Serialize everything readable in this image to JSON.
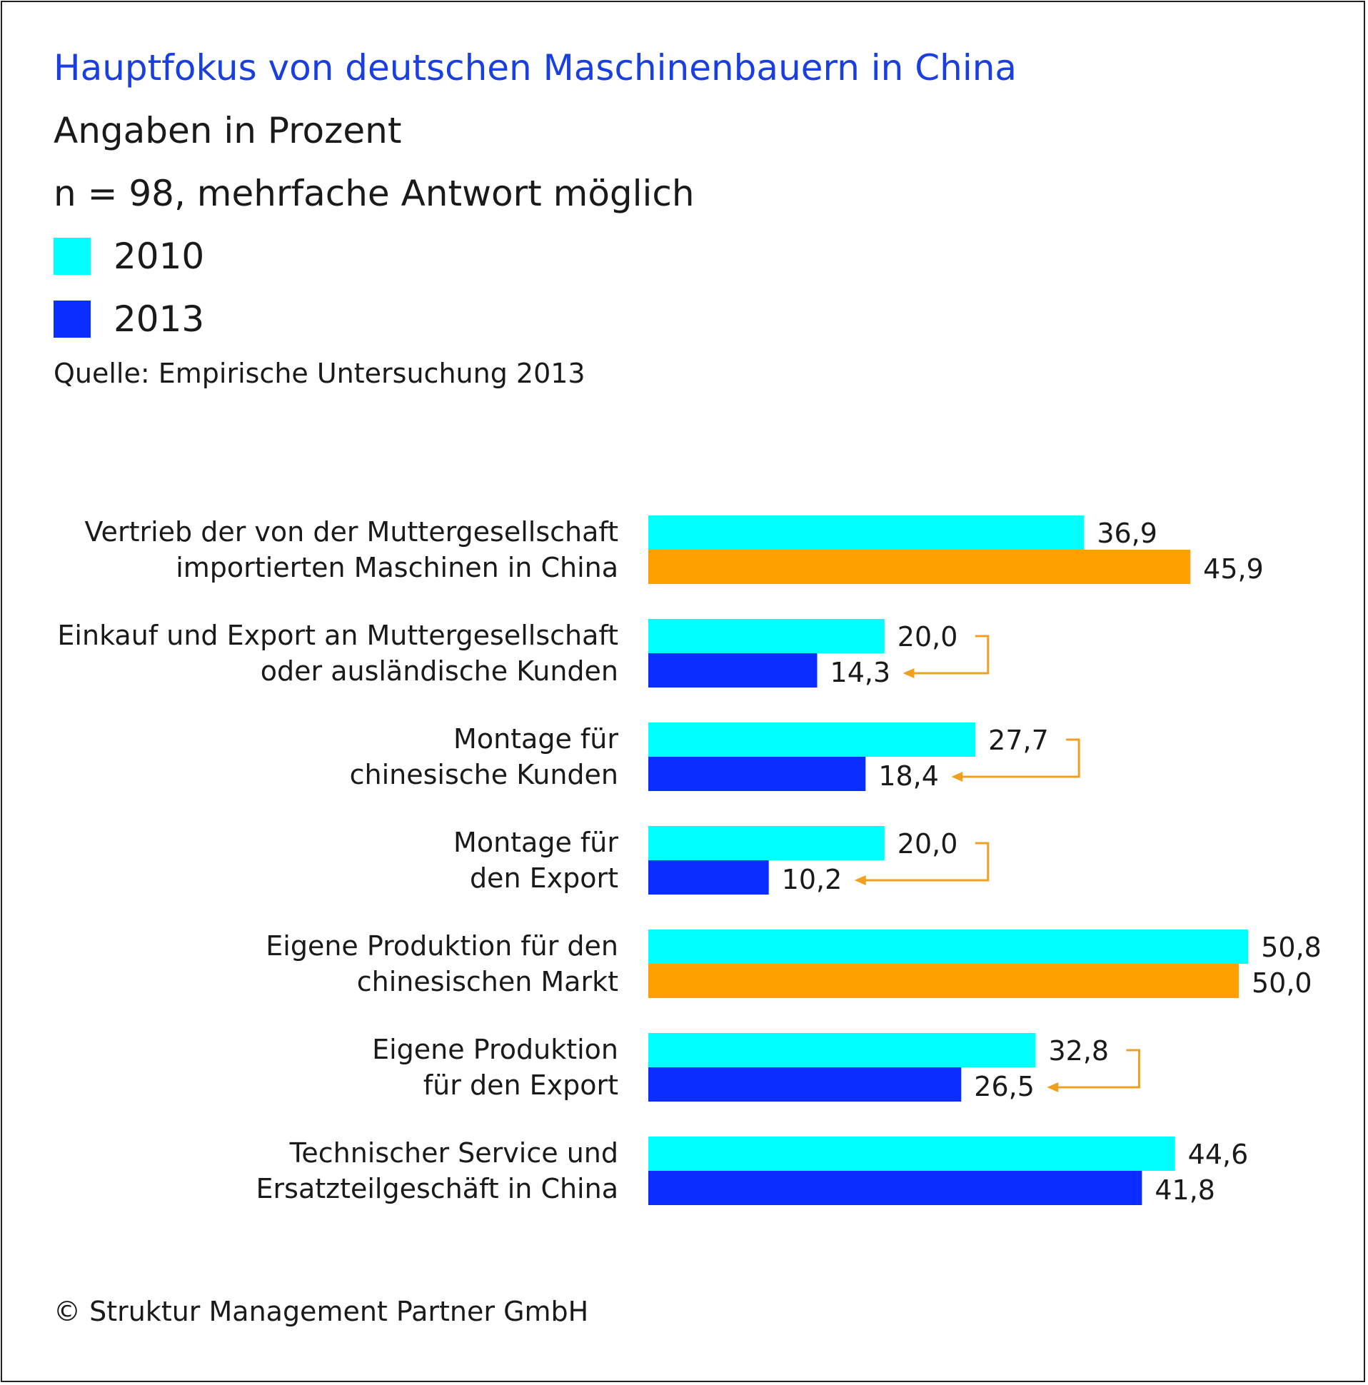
{
  "header": {
    "title": "Hauptfokus von deutschen Maschinenbauern in China",
    "subtitle": "Angaben in Prozent",
    "note": "n = 98, mehrfache Antwort möglich",
    "source": "Quelle: Empirische Untersuchung 2013"
  },
  "legend": [
    {
      "label": "2010",
      "color": "#00ffff"
    },
    {
      "label": "2013",
      "color": "#0a2eff"
    }
  ],
  "footer": {
    "copyright": "© Struktur Management Partner GmbH"
  },
  "colors": {
    "series_2010": "#00ffff",
    "series_2013": "#0a2eff",
    "highlight": "#ff9f00",
    "arrow": "#f0a020"
  },
  "chart_data": {
    "type": "bar",
    "orientation": "horizontal",
    "title": "Hauptfokus von deutschen Maschinenbauern in China",
    "xlabel": "",
    "ylabel": "",
    "xlim": [
      0,
      55
    ],
    "grid": false,
    "categories": [
      [
        "Vertrieb der von der Muttergesellschaft",
        "importierten Maschinen in China"
      ],
      [
        "Einkauf und Export an Muttergesellschaft",
        "oder ausländische Kunden"
      ],
      [
        "Montage für",
        "chinesische Kunden"
      ],
      [
        "Montage für",
        "den Export"
      ],
      [
        "Eigene Produktion für den",
        "chinesischen Markt"
      ],
      [
        "Eigene Produktion",
        "für den Export"
      ],
      [
        "Technischer Service und",
        "Ersatzteilgeschäft in China"
      ]
    ],
    "series": [
      {
        "name": "2010",
        "values": [
          36.9,
          20.0,
          27.7,
          20.0,
          50.8,
          32.8,
          44.6
        ],
        "labels": [
          "36,9",
          "20,0",
          "27,7",
          "20,0",
          "50,8",
          "32,8",
          "44,6"
        ]
      },
      {
        "name": "2013",
        "values": [
          45.9,
          14.3,
          18.4,
          10.2,
          50.0,
          26.5,
          41.8
        ],
        "labels": [
          "45,9",
          "14,3",
          "18,4",
          "10,2",
          "50,0",
          "26,5",
          "41,8"
        ]
      }
    ],
    "highlighted_2013": [
      true,
      false,
      false,
      false,
      true,
      false,
      false
    ],
    "decline_arrows": [
      false,
      true,
      true,
      true,
      false,
      true,
      false
    ]
  }
}
